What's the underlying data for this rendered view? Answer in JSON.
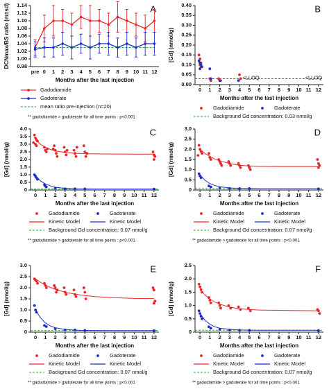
{
  "chart_data": [
    {
      "type": "line",
      "panel": "A",
      "ylabel": "DCNmax/BS ratio (m±sd)",
      "xlabel": "Months after the last injection",
      "categories": [
        "pre",
        "0",
        "1",
        "2",
        "3",
        "4",
        "5",
        "6",
        "7",
        "8",
        "9",
        "10",
        "11",
        "12"
      ],
      "ylim": [
        0.98,
        1.14
      ],
      "yticks": [
        0.98,
        {
          "value": 1,
          "label": "1.00"
        },
        1.02,
        1.04,
        1.06,
        1.08,
        {
          "value": 1.1,
          "label": "1.10"
        },
        1.12,
        1.14
      ],
      "series": [
        {
          "name": "Gadodiamide",
          "color": "#e8262a",
          "values": [
            1.03,
            1.08,
            1.1,
            1.1,
            1.09,
            1.11,
            1.1,
            1.1,
            1.09,
            1.11,
            1.1,
            1.09,
            1.08,
            1.1
          ],
          "errors": [
            0.02,
            0.035,
            0.04,
            0.03,
            0.03,
            0.03,
            0.04,
            0.03,
            0.03,
            0.04,
            0.03,
            0.03,
            0.035,
            0.03
          ]
        },
        {
          "name": "Gadoterate",
          "color": "#1f2ec9",
          "values": [
            1.025,
            1.03,
            1.03,
            1.04,
            1.03,
            1.04,
            1.03,
            1.04,
            1.04,
            1.03,
            1.04,
            1.03,
            1.04,
            1.04
          ],
          "errors": [
            0.02,
            0.025,
            0.025,
            0.03,
            0.03,
            0.025,
            0.03,
            0.025,
            0.03,
            0.025,
            0.03,
            0.025,
            0.03,
            0.03
          ]
        }
      ],
      "reference": {
        "name": "mean ratio pre-injection (n=20)",
        "value": 1.03,
        "color": "#2ca02c"
      },
      "footnote": "** gadodiamide > gadoterate for all time points : p<0.001"
    },
    {
      "type": "scatter",
      "panel": "B",
      "ylabel": "[Gd] (nmol/g)",
      "xlabel": "Months after the last injection",
      "xlim": [
        -0.5,
        12.5
      ],
      "xticks": [
        0,
        1,
        2,
        3,
        4,
        5,
        6,
        7,
        8,
        9,
        10,
        11,
        12
      ],
      "ylim": [
        0,
        0.4
      ],
      "yticks": [
        {
          "value": 0,
          "label": "0.00"
        },
        0.05,
        {
          "value": 0.1,
          "label": "0.10"
        },
        0.15,
        {
          "value": 0.2,
          "label": "0.20"
        },
        0.25,
        {
          "value": 0.3,
          "label": "0.30"
        },
        0.35,
        {
          "value": 0.4,
          "label": "0.40"
        }
      ],
      "series": [
        {
          "name": "Gadodiamide",
          "color": "#e8262a",
          "mode": "markers",
          "x": [
            -0.1,
            0,
            0.1,
            0,
            0.1,
            1,
            1.1,
            1.9,
            2.1,
            4,
            4.1
          ],
          "values": [
            0.15,
            0.13,
            0.11,
            0.1,
            0.09,
            0.03,
            0.02,
            0.03,
            0.02,
            0.05,
            0.03
          ]
        },
        {
          "name": "Gadoterate",
          "color": "#1f2ec9",
          "mode": "markers",
          "x": [
            -0.1,
            0,
            0.1,
            0.2,
            0,
            1,
            1.1,
            2,
            3.9
          ],
          "values": [
            0.12,
            0.11,
            0.1,
            0.09,
            0.08,
            0.08,
            0.03,
            0.02,
            0.02
          ]
        }
      ],
      "reference": {
        "name": "Background Gd concentration: 0.03 nmol/g",
        "value": 0.03,
        "color": "#2ca02c"
      },
      "annotations": [
        "<LLOQ",
        "<LLOQ"
      ]
    },
    {
      "type": "scatter",
      "panel": "C",
      "ylabel": "[Gd] (nmol/g)",
      "xlabel": "Months after the last injection",
      "xlim": [
        -0.5,
        12.5
      ],
      "xticks": [
        0,
        1,
        2,
        3,
        4,
        5,
        6,
        7,
        8,
        9,
        10,
        11,
        12
      ],
      "ylim": [
        0,
        4
      ],
      "yticks": [
        0,
        0.5,
        {
          "value": 1,
          "label": "1.0"
        },
        1.5,
        {
          "value": 2,
          "label": "2.0"
        },
        2.5,
        {
          "value": 3,
          "label": "3.0"
        },
        3.5,
        {
          "value": 4,
          "label": "4.0"
        }
      ],
      "series": [
        {
          "name": "Gadodiamide",
          "color": "#e8262a",
          "mode": "markers",
          "x": [
            -0.1,
            0,
            0.1,
            0.2,
            -0.2,
            0,
            0.1,
            0.9,
            1,
            1.1,
            1.2,
            1.9,
            2,
            2.1,
            2.2,
            1.8,
            2.9,
            3,
            3.1,
            3.2,
            3.9,
            4,
            4.1,
            4.2,
            4.9,
            5,
            5.1,
            5.2,
            11.9,
            12,
            12.1,
            12
          ],
          "values": [
            3.6,
            3.4,
            3.3,
            3.2,
            3.1,
            3.0,
            2.9,
            2.8,
            2.6,
            2.5,
            2.7,
            2.9,
            2.6,
            2.4,
            2.2,
            2.7,
            2.8,
            2.5,
            2.3,
            2.6,
            2.6,
            2.4,
            2.2,
            2.8,
            2.9,
            2.5,
            2.2,
            2.4,
            2.5,
            2.3,
            2.2,
            2.0
          ]
        },
        {
          "name": "Gadoterate",
          "color": "#1f2ec9",
          "mode": "markers",
          "x": [
            -0.1,
            0,
            0.1,
            0.2,
            0.9,
            1,
            1.1,
            2,
            3,
            4,
            5,
            12
          ],
          "values": [
            1.0,
            0.9,
            0.8,
            0.7,
            0.35,
            0.25,
            0.2,
            0.12,
            0.08,
            0.08,
            0.07,
            0.06
          ]
        },
        {
          "name": "Kinetic Model",
          "color": "#e8262a",
          "mode": "lines",
          "x": [
            0,
            0.5,
            1,
            1.5,
            2,
            3,
            4,
            5,
            6,
            8,
            10,
            12
          ],
          "values": [
            3.3,
            3.0,
            2.8,
            2.66,
            2.57,
            2.46,
            2.41,
            2.38,
            2.37,
            2.36,
            2.35,
            2.35
          ]
        },
        {
          "name": "Kinetic Model",
          "color": "#1f2ec9",
          "mode": "lines",
          "x": [
            0,
            0.5,
            1,
            1.5,
            2,
            3,
            4,
            5,
            6,
            8,
            10,
            12
          ],
          "values": [
            0.95,
            0.6,
            0.4,
            0.27,
            0.18,
            0.11,
            0.08,
            0.075,
            0.07,
            0.07,
            0.07,
            0.07
          ]
        }
      ],
      "reference": {
        "name": "Background Gd concentration: 0.07 nmol/g",
        "value": 0.07,
        "color": "#2ca02c"
      },
      "footnote": "** gadodiamide > gadoterate for all time points : p<0.001"
    },
    {
      "type": "scatter",
      "panel": "D",
      "ylabel": "[Gd] (nmol/g)",
      "xlabel": "Months after the last injection",
      "xlim": [
        -0.5,
        12.5
      ],
      "xticks": [
        0,
        1,
        2,
        3,
        4,
        5,
        6,
        7,
        8,
        9,
        10,
        11,
        12
      ],
      "ylim": [
        0,
        3
      ],
      "yticks": [
        0,
        0.5,
        {
          "value": 1,
          "label": "1.0"
        },
        1.5,
        {
          "value": 2,
          "label": "2.0"
        },
        2.5,
        {
          "value": 3,
          "label": "3.0"
        }
      ],
      "series": [
        {
          "name": "Gadodiamide",
          "color": "#e8262a",
          "mode": "markers",
          "x": [
            -0.1,
            0,
            0.1,
            0.2,
            -0.2,
            0.9,
            1,
            1.1,
            1.9,
            2,
            2.1,
            2.2,
            2.9,
            3,
            3.1,
            3.9,
            4,
            4.1,
            4.9,
            5,
            5.1,
            11.9,
            12,
            12.1,
            12
          ],
          "values": [
            2.2,
            2.0,
            1.9,
            1.8,
            1.7,
            1.8,
            1.6,
            1.5,
            1.5,
            1.4,
            1.3,
            1.2,
            1.4,
            1.3,
            1.2,
            1.3,
            1.2,
            1.1,
            1.2,
            1.1,
            1.0,
            1.5,
            1.3,
            1.2,
            1.1
          ]
        },
        {
          "name": "Gadoterate",
          "color": "#1f2ec9",
          "mode": "markers",
          "x": [
            -0.1,
            0,
            0.1,
            0.9,
            1.1,
            2,
            3,
            4,
            5,
            12
          ],
          "values": [
            0.8,
            0.7,
            0.6,
            0.2,
            0.15,
            0.1,
            0.08,
            0.07,
            0.07,
            0.06
          ]
        },
        {
          "name": "Kinetic Model",
          "color": "#e8262a",
          "mode": "lines",
          "x": [
            0,
            0.5,
            1,
            1.5,
            2,
            3,
            4,
            5,
            6,
            8,
            10,
            12
          ],
          "values": [
            2.0,
            1.8,
            1.65,
            1.52,
            1.43,
            1.3,
            1.22,
            1.18,
            1.16,
            1.15,
            1.15,
            1.15
          ]
        },
        {
          "name": "Kinetic Model",
          "color": "#1f2ec9",
          "mode": "lines",
          "x": [
            0,
            0.5,
            1,
            1.5,
            2,
            3,
            4,
            5,
            6,
            8,
            10,
            12
          ],
          "values": [
            0.75,
            0.48,
            0.32,
            0.22,
            0.16,
            0.1,
            0.08,
            0.075,
            0.07,
            0.07,
            0.07,
            0.07
          ]
        }
      ],
      "reference": {
        "name": "Background Gd concentration: 0.07 nmol/g",
        "value": 0.07,
        "color": "#2ca02c"
      },
      "footnote": "** gadodiamide > gadoterate for all time points : p<0.001"
    },
    {
      "type": "scatter",
      "panel": "E",
      "ylabel": "[Gd] (nmol/g)",
      "xlabel": "Months after the last injection",
      "xlim": [
        -0.5,
        12.5
      ],
      "xticks": [
        0,
        1,
        2,
        3,
        4,
        5,
        6,
        7,
        8,
        9,
        10,
        11,
        12
      ],
      "ylim": [
        0,
        3
      ],
      "yticks": [
        0,
        0.5,
        {
          "value": 1,
          "label": "1.0"
        },
        1.5,
        {
          "value": 2,
          "label": "2.0"
        },
        2.5,
        {
          "value": 3,
          "label": "3.0"
        }
      ],
      "series": [
        {
          "name": "Gadodiamide",
          "color": "#e8262a",
          "mode": "markers",
          "x": [
            -0.1,
            0,
            0.1,
            0.2,
            0.9,
            1,
            1.1,
            1.9,
            2,
            2.1,
            2.2,
            2.9,
            3,
            3.1,
            3.9,
            4,
            4.1,
            4.9,
            5,
            5.1,
            11.9,
            12,
            12.1,
            12
          ],
          "values": [
            2.4,
            2.35,
            2.3,
            2.2,
            2.2,
            2.1,
            2.0,
            2.1,
            2.0,
            1.8,
            1.9,
            2.0,
            1.8,
            1.7,
            1.9,
            1.7,
            1.6,
            2.0,
            1.8,
            1.5,
            2.0,
            1.9,
            1.4,
            1.3
          ]
        },
        {
          "name": "Gadoterate",
          "color": "#1f2ec9",
          "mode": "markers",
          "x": [
            -0.1,
            0,
            0.1,
            0.9,
            1.1,
            2,
            3,
            4,
            5,
            12
          ],
          "values": [
            1.2,
            1.0,
            0.9,
            0.3,
            0.25,
            0.15,
            0.1,
            0.1,
            0.08,
            0.07
          ]
        },
        {
          "name": "Kinetic Model",
          "color": "#e8262a",
          "mode": "lines",
          "x": [
            0,
            0.5,
            1,
            1.5,
            2,
            3,
            4,
            5,
            6,
            8,
            10,
            12
          ],
          "values": [
            2.4,
            2.25,
            2.12,
            2.02,
            1.93,
            1.8,
            1.71,
            1.65,
            1.6,
            1.55,
            1.52,
            1.51
          ]
        },
        {
          "name": "Kinetic Model",
          "color": "#1f2ec9",
          "mode": "lines",
          "x": [
            0,
            0.5,
            1,
            1.5,
            2,
            3,
            4,
            5,
            6,
            8,
            10,
            12
          ],
          "values": [
            1.0,
            0.65,
            0.42,
            0.28,
            0.2,
            0.12,
            0.09,
            0.08,
            0.075,
            0.07,
            0.07,
            0.07
          ]
        }
      ],
      "reference": {
        "name": "Background Gd concentration: 0.07 nmol/g",
        "value": 0.07,
        "color": "#2ca02c"
      },
      "footnote": "** gadodiamide > gadoterate for all time points : p<0.001"
    },
    {
      "type": "scatter",
      "panel": "F",
      "ylabel": "[Gd] (nmol/g)",
      "xlabel": "Months after the last injection",
      "xlim": [
        -0.5,
        12.5
      ],
      "xticks": [
        0,
        1,
        2,
        3,
        4,
        5,
        6,
        7,
        8,
        9,
        10,
        11,
        12
      ],
      "ylim": [
        0,
        2.5
      ],
      "yticks": [
        0,
        0.5,
        {
          "value": 1,
          "label": "1.0"
        },
        1.5,
        {
          "value": 2,
          "label": "2.0"
        },
        2.5
      ],
      "series": [
        {
          "name": "Gadodiamide",
          "color": "#e8262a",
          "mode": "markers",
          "x": [
            -0.1,
            0,
            0.1,
            0.2,
            0.9,
            1,
            1.1,
            1.9,
            2,
            2.1,
            2.9,
            3.1,
            3.9,
            4.1,
            4.9,
            5.1,
            11.9,
            12,
            12.1
          ],
          "values": [
            1.8,
            1.7,
            1.6,
            1.5,
            1.3,
            1.2,
            1.1,
            1.1,
            1.0,
            0.9,
            1.0,
            0.9,
            0.95,
            0.85,
            0.9,
            0.8,
            0.85,
            0.8,
            0.7
          ]
        },
        {
          "name": "Gadoterate",
          "color": "#1f2ec9",
          "mode": "markers",
          "x": [
            -0.1,
            0,
            0.1,
            0.2,
            0.9,
            1.1,
            2,
            3,
            4,
            5,
            12
          ],
          "values": [
            0.8,
            0.7,
            0.6,
            0.5,
            0.2,
            0.15,
            0.1,
            0.08,
            0.07,
            0.07,
            0.06
          ]
        },
        {
          "name": "Kinetic Model",
          "color": "#e8262a",
          "mode": "lines",
          "x": [
            0,
            0.5,
            1,
            1.5,
            2,
            3,
            4,
            5,
            6,
            8,
            10,
            12
          ],
          "values": [
            1.6,
            1.4,
            1.25,
            1.13,
            1.05,
            0.94,
            0.88,
            0.85,
            0.83,
            0.82,
            0.81,
            0.8
          ]
        },
        {
          "name": "Kinetic Model",
          "color": "#1f2ec9",
          "mode": "lines",
          "x": [
            0,
            0.5,
            1,
            1.5,
            2,
            3,
            4,
            5,
            6,
            8,
            10,
            12
          ],
          "values": [
            0.7,
            0.45,
            0.3,
            0.2,
            0.15,
            0.1,
            0.08,
            0.075,
            0.07,
            0.07,
            0.07,
            0.07
          ]
        }
      ],
      "reference": {
        "name": "Background Gd concentration: 0.07 nmol/g",
        "value": 0.07,
        "color": "#2ca02c"
      },
      "footnote": "** gadodiamide > gadoterate for all time points : p<0.001"
    }
  ]
}
